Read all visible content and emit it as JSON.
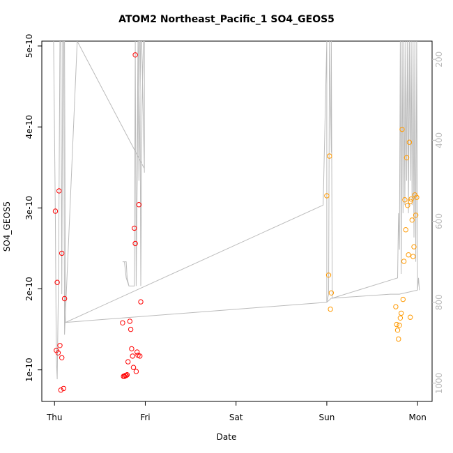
{
  "chart_data": {
    "type": "scatter",
    "title": "ATOM2 Northeast_Pacific_1 SO4_GEOS5",
    "xlabel": "Date",
    "ylabel": "SO4_GEOS5",
    "x_ticks": [
      "Thu",
      "Fri",
      "Sat",
      "Sun",
      "Mon"
    ],
    "x_tick_values": [
      0,
      1,
      2,
      3,
      4
    ],
    "xlim": [
      -0.14,
      4.16
    ],
    "y_ticks": [
      "1e-10",
      "2e-10",
      "3e-10",
      "4e-10",
      "5e-10"
    ],
    "y_tick_values": [
      1e-10,
      2e-10,
      3e-10,
      4e-10,
      5e-10
    ],
    "ylim": [
      6.1e-11,
      5.06e-10
    ],
    "y2_ticks": [
      "200",
      "400",
      "600",
      "800",
      "1000"
    ],
    "y2_tick_values": [
      200,
      400,
      600,
      800,
      1000
    ],
    "y2lim": [
      1045,
      155
    ],
    "grid": false,
    "colors": {
      "series_1": "#ff0000",
      "series_2": "#ff9900",
      "pressure": "#bbbbbb"
    },
    "series": [
      {
        "color": "#ff0000",
        "points": [
          [
            0.01,
            2.96e-10
          ],
          [
            0.05,
            3.21e-10
          ],
          [
            0.08,
            2.44e-10
          ],
          [
            0.03,
            2.08e-10
          ],
          [
            0.11,
            1.88e-10
          ],
          [
            0.02,
            1.24e-10
          ],
          [
            0.04,
            1.21e-10
          ],
          [
            0.06,
            1.3e-10
          ],
          [
            0.08,
            1.15e-10
          ],
          [
            0.07,
            7.5e-11
          ],
          [
            0.1,
            7.7e-11
          ],
          [
            0.75,
            1.58e-10
          ],
          [
            0.76,
            9.2e-11
          ],
          [
            0.77,
            9.2e-11
          ],
          [
            0.78,
            9.3e-11
          ],
          [
            0.79,
            9.3e-11
          ],
          [
            0.8,
            9.4e-11
          ],
          [
            0.83,
            1.6e-10
          ],
          [
            0.84,
            1.5e-10
          ],
          [
            0.85,
            1.26e-10
          ],
          [
            0.86,
            1.17e-10
          ],
          [
            0.81,
            1.1e-10
          ],
          [
            0.87,
            1.03e-10
          ],
          [
            0.9,
            9.8e-11
          ],
          [
            0.91,
            1.22e-10
          ],
          [
            0.92,
            1.18e-10
          ],
          [
            0.94,
            1.17e-10
          ],
          [
            0.88,
            2.75e-10
          ],
          [
            0.89,
            2.56e-10
          ],
          [
            0.93,
            3.04e-10
          ],
          [
            0.95,
            1.84e-10
          ],
          [
            0.89,
            4.89e-10
          ]
        ]
      },
      {
        "color": "#ff9900",
        "points": [
          [
            3.0,
            3.15e-10
          ],
          [
            3.03,
            3.64e-10
          ],
          [
            3.02,
            2.17e-10
          ],
          [
            3.05,
            1.95e-10
          ],
          [
            3.04,
            1.75e-10
          ],
          [
            3.76,
            1.78e-10
          ],
          [
            3.77,
            1.56e-10
          ],
          [
            3.78,
            1.49e-10
          ],
          [
            3.79,
            1.38e-10
          ],
          [
            3.8,
            1.55e-10
          ],
          [
            3.81,
            1.64e-10
          ],
          [
            3.82,
            1.7e-10
          ],
          [
            3.84,
            1.87e-10
          ],
          [
            3.83,
            3.97e-10
          ],
          [
            3.85,
            2.34e-10
          ],
          [
            3.86,
            3.1e-10
          ],
          [
            3.87,
            2.73e-10
          ],
          [
            3.88,
            3.62e-10
          ],
          [
            3.89,
            3.03e-10
          ],
          [
            3.9,
            2.42e-10
          ],
          [
            3.91,
            3.81e-10
          ],
          [
            3.92,
            3.08e-10
          ],
          [
            3.93,
            3.11e-10
          ],
          [
            3.94,
            2.85e-10
          ],
          [
            3.95,
            2.4e-10
          ],
          [
            3.96,
            2.52e-10
          ],
          [
            3.97,
            3.16e-10
          ],
          [
            3.98,
            2.91e-10
          ],
          [
            3.99,
            3.13e-10
          ],
          [
            3.92,
            1.65e-10
          ]
        ]
      }
    ],
    "pressure_trace": [
      [
        -0.01,
        10
      ],
      [
        0.01,
        600
      ],
      [
        0.02,
        940
      ],
      [
        0.03,
        990
      ],
      [
        0.045,
        720
      ],
      [
        0.06,
        10
      ],
      [
        0.07,
        150
      ],
      [
        0.08,
        780
      ],
      [
        0.09,
        150
      ],
      [
        0.1,
        10
      ],
      [
        0.105,
        450
      ],
      [
        0.11,
        880
      ],
      [
        0.25,
        10
      ],
      [
        0.99,
        470
      ],
      [
        0.99,
        10
      ],
      [
        0.98,
        10
      ],
      [
        0.965,
        300
      ],
      [
        0.95,
        760
      ],
      [
        0.94,
        10
      ],
      [
        0.93,
        10
      ],
      [
        0.915,
        400
      ],
      [
        0.9,
        760
      ],
      [
        0.89,
        10
      ],
      [
        0.88,
        760
      ],
      [
        0.87,
        760
      ],
      [
        0.82,
        760
      ],
      [
        0.8,
        740
      ],
      [
        0.79,
        700
      ],
      [
        0.75,
        700
      ],
      [
        0.75,
        700
      ],
      [
        0.77,
        700
      ],
      [
        0.79,
        740
      ],
      [
        0.82,
        760
      ],
      [
        0.83,
        760
      ],
      [
        0.85,
        760
      ],
      [
        0.87,
        760
      ],
      [
        0.88,
        760
      ],
      [
        0.89,
        10
      ],
      [
        0.9,
        760
      ],
      [
        0.92,
        10
      ],
      [
        0.93,
        500
      ],
      [
        0.95,
        10
      ],
      [
        0.96,
        10
      ],
      [
        0.99,
        480
      ],
      [
        0.99,
        200
      ]
    ],
    "pressure_trace_2": [
      [
        0.11,
        20
      ],
      [
        0.12,
        850
      ],
      [
        2.96,
        560
      ],
      [
        3.0,
        10
      ],
      [
        3.0,
        800
      ],
      [
        3.02,
        780
      ],
      [
        3.03,
        10
      ],
      [
        3.05,
        430
      ],
      [
        3.05,
        20
      ],
      [
        3.06,
        790
      ],
      [
        3.78,
        740
      ],
      [
        3.79,
        580
      ],
      [
        3.8,
        670
      ],
      [
        3.81,
        10
      ],
      [
        3.82,
        730
      ],
      [
        3.83,
        10
      ],
      [
        3.84,
        580
      ],
      [
        3.85,
        10
      ],
      [
        3.86,
        560
      ],
      [
        3.87,
        10
      ],
      [
        3.88,
        500
      ],
      [
        3.89,
        10
      ],
      [
        3.9,
        580
      ],
      [
        3.91,
        10
      ],
      [
        3.92,
        500
      ],
      [
        3.93,
        10
      ],
      [
        3.94,
        560
      ],
      [
        3.95,
        10
      ],
      [
        3.96,
        640
      ],
      [
        3.97,
        10
      ],
      [
        3.98,
        700
      ],
      [
        3.99,
        10
      ],
      [
        4.0,
        770
      ],
      [
        4.01,
        740
      ],
      [
        4.02,
        770
      ]
    ],
    "pressure_trace_3": [
      [
        0.11,
        850
      ],
      [
        3.0,
        800
      ]
    ],
    "pressure_trace_4": [
      [
        3.0,
        800
      ],
      [
        3.05,
        790
      ],
      [
        3.06,
        790
      ],
      [
        3.7,
        780
      ],
      [
        3.78,
        780
      ],
      [
        3.8,
        780
      ],
      [
        4.0,
        770
      ]
    ]
  }
}
